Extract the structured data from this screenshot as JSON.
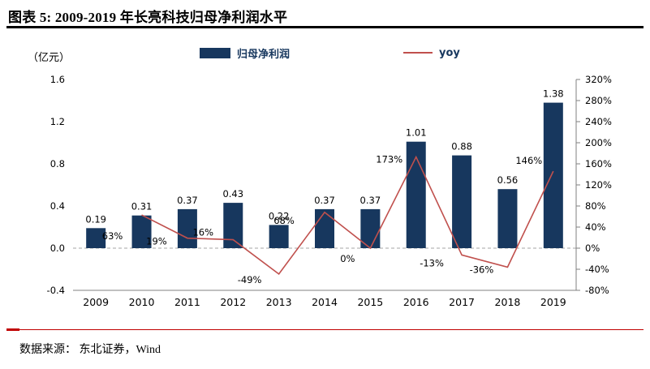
{
  "header": {
    "title": "图表 5:  2009-2019 年长亮科技归母净利润水平"
  },
  "legend": {
    "bar_label": "归母净利润",
    "line_label": "yoy"
  },
  "chart_data": {
    "type": "bar+line",
    "title": "2009-2019 年长亮科技归母净利润水平",
    "unit_label": "（亿元）",
    "categories": [
      "2009",
      "2010",
      "2011",
      "2012",
      "2013",
      "2014",
      "2015",
      "2016",
      "2017",
      "2018",
      "2019"
    ],
    "series": [
      {
        "name": "归母净利润",
        "type": "bar",
        "color": "#17375E",
        "values": [
          0.19,
          0.31,
          0.37,
          0.43,
          0.22,
          0.37,
          0.37,
          1.01,
          0.88,
          0.56,
          1.38
        ],
        "labels": [
          "0.19",
          "0.31",
          "0.37",
          "0.43",
          "0.22",
          "0.37",
          "0.37",
          "1.01",
          "0.88",
          "0.56",
          "1.38"
        ]
      },
      {
        "name": "yoy",
        "type": "line",
        "color": "#C0504D",
        "values": [
          null,
          63,
          19,
          16,
          -49,
          68,
          0,
          173,
          -13,
          -36,
          146
        ],
        "labels": [
          null,
          "63%",
          "19%",
          "16%",
          "-49%",
          "68%",
          "0%",
          "173%",
          "-13%",
          "-36%",
          "146%"
        ]
      }
    ],
    "left_axis": {
      "min": -0.4,
      "max": 1.6,
      "tick_values": [
        -0.4,
        0.0,
        0.4,
        0.8,
        1.2,
        1.6
      ],
      "tick_labels": [
        "-0.4",
        "0.0",
        "0.4",
        "0.8",
        "1.2",
        "1.6"
      ]
    },
    "right_axis": {
      "min": -80,
      "max": 320,
      "tick_values": [
        -80,
        -40,
        0,
        40,
        80,
        120,
        160,
        200,
        240,
        280,
        320
      ],
      "tick_labels": [
        "-80%",
        "-40%",
        "0%",
        "40%",
        "80%",
        "120%",
        "160%",
        "200%",
        "240%",
        "280%",
        "320%"
      ]
    },
    "legend_position": "top",
    "grid": "dashed zero line only, solid bottom axis"
  },
  "footer": {
    "source": "数据来源： 东北证券，Wind"
  },
  "colors": {
    "bar": "#17375E",
    "line": "#C0504D",
    "title_rule": "#000000",
    "footer_rule": "#C00000",
    "axis": "#808080",
    "zero_gridline": "#a6a6a6"
  }
}
